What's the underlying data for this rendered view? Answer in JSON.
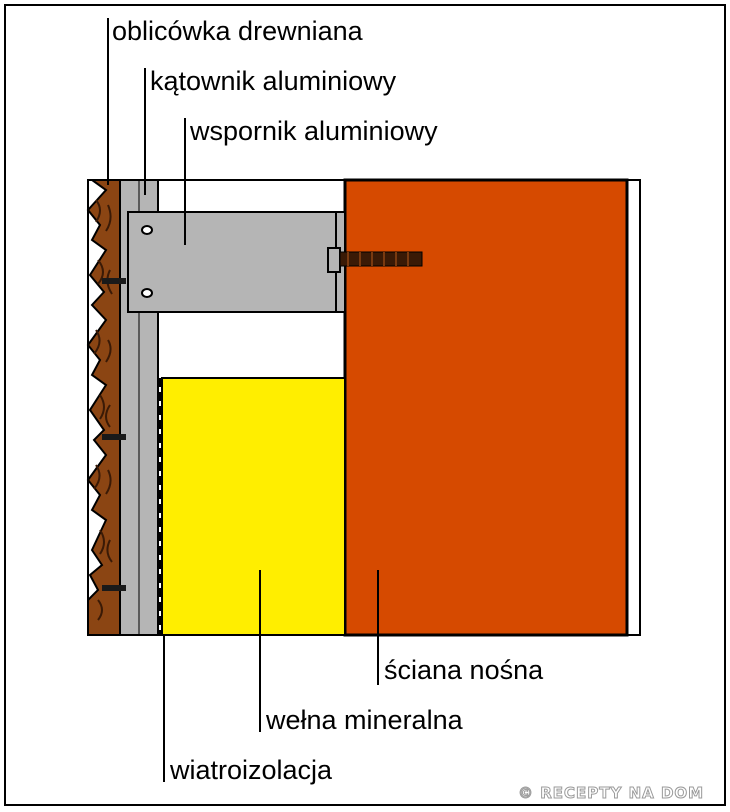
{
  "labels": {
    "oblicowka": "oblicówka drewniana",
    "katownik": "kątownik aluminiowy",
    "wspornik": "wspornik aluminiowy",
    "sciana": "ściana nośna",
    "welna": "wełna mineralna",
    "wiatroizolacja": "wiatroizolacja"
  },
  "watermark": "© RECEPTY NA DOM",
  "colors": {
    "wood": "#8B4513",
    "wood_grain": "#3a1a06",
    "aluminium": "#b5b5b5",
    "wool": "#ffee00",
    "wall": "#d64a00",
    "outline": "#000000"
  }
}
